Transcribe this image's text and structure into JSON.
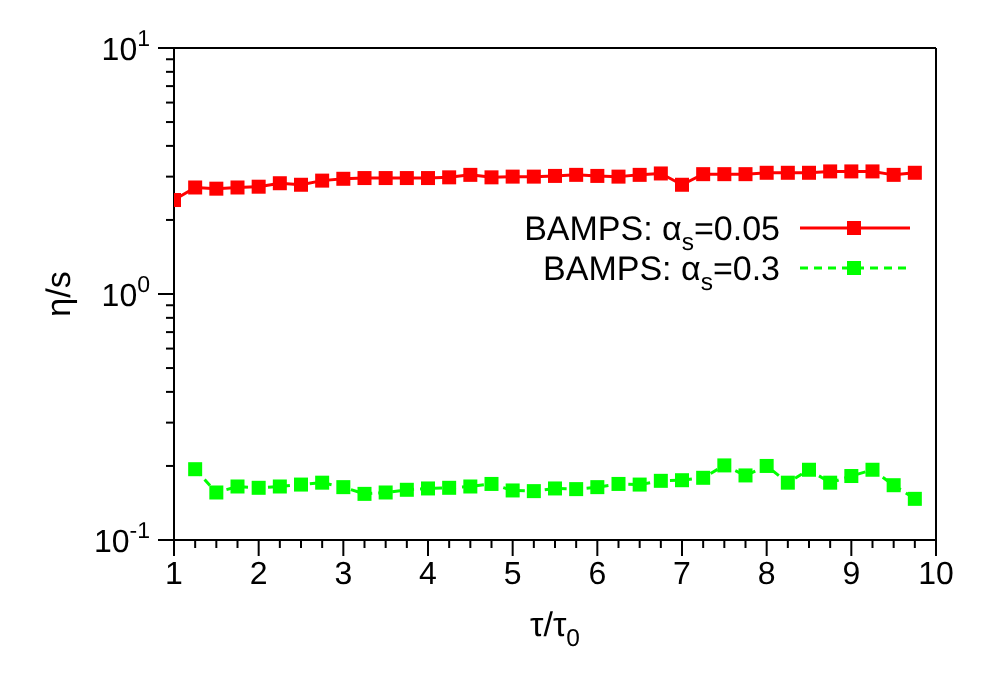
{
  "chart_data": {
    "type": "line",
    "xlabel": "τ/τ$_{0}$",
    "ylabel": "η/s",
    "log": "y",
    "xlim": [
      1,
      10
    ],
    "ylim": [
      0.1,
      10
    ],
    "xticks": [
      1,
      {
        "value": 1.25,
        "label": null
      },
      {
        "value": 1.5,
        "label": null
      },
      {
        "value": 1.75,
        "label": null
      },
      2,
      {
        "value": 2.25,
        "label": null
      },
      {
        "value": 2.5,
        "label": null
      },
      {
        "value": 2.75,
        "label": null
      },
      3,
      {
        "value": 3.25,
        "label": null
      },
      {
        "value": 3.5,
        "label": null
      },
      {
        "value": 3.75,
        "label": null
      },
      4,
      {
        "value": 4.25,
        "label": null
      },
      {
        "value": 4.5,
        "label": null
      },
      {
        "value": 4.75,
        "label": null
      },
      5,
      {
        "value": 5.25,
        "label": null
      },
      {
        "value": 5.5,
        "label": null
      },
      {
        "value": 5.75,
        "label": null
      },
      6,
      {
        "value": 6.25,
        "label": null
      },
      {
        "value": 6.5,
        "label": null
      },
      {
        "value": 6.75,
        "label": null
      },
      7,
      {
        "value": 7.25,
        "label": null
      },
      {
        "value": 7.5,
        "label": null
      },
      {
        "value": 7.75,
        "label": null
      },
      8,
      {
        "value": 8.25,
        "label": null
      },
      {
        "value": 8.5,
        "label": null
      },
      {
        "value": 8.75,
        "label": null
      },
      9,
      {
        "value": 9.25,
        "label": null
      },
      {
        "value": 9.5,
        "label": null
      },
      {
        "value": 9.75,
        "label": null
      },
      10
    ],
    "yticks": [
      {
        "value": 0.1,
        "label": "10$^{-1}$"
      },
      {
        "value": 0.2,
        "label": null
      },
      {
        "value": 0.3,
        "label": null
      },
      {
        "value": 0.4,
        "label": null
      },
      {
        "value": 0.5,
        "label": null
      },
      {
        "value": 0.6,
        "label": null
      },
      {
        "value": 0.7,
        "label": null
      },
      {
        "value": 0.8,
        "label": null
      },
      {
        "value": 0.9,
        "label": null
      },
      {
        "value": 1,
        "label": "10$^{0}$"
      },
      {
        "value": 2,
        "label": null
      },
      {
        "value": 3,
        "label": null
      },
      {
        "value": 4,
        "label": null
      },
      {
        "value": 5,
        "label": null
      },
      {
        "value": 6,
        "label": null
      },
      {
        "value": 7,
        "label": null
      },
      {
        "value": 8,
        "label": null
      },
      {
        "value": 9,
        "label": null
      },
      {
        "value": 10,
        "label": "10$^{1}$"
      }
    ],
    "legend": "top right",
    "marker": "square",
    "series": [
      {
        "name": "BAMPS: α$_{s}$=0.05",
        "color": "#ff0000",
        "line_style": "solid",
        "x": [
          1,
          1.25,
          1.5,
          1.75,
          2,
          2.25,
          2.5,
          2.75,
          3,
          3.25,
          3.5,
          3.75,
          4,
          4.25,
          4.5,
          4.75,
          5,
          5.25,
          5.5,
          5.75,
          6,
          6.25,
          6.5,
          6.75,
          7,
          7.25,
          7.5,
          7.75,
          8,
          8.25,
          8.5,
          8.75,
          9,
          9.25,
          9.5,
          9.75
        ],
        "values": [
          2.41,
          2.71,
          2.68,
          2.71,
          2.73,
          2.82,
          2.78,
          2.89,
          2.94,
          2.96,
          2.96,
          2.96,
          2.96,
          2.98,
          3.05,
          2.98,
          3.0,
          3.0,
          3.02,
          3.05,
          3.02,
          3.0,
          3.05,
          3.09,
          2.78,
          3.07,
          3.07,
          3.07,
          3.11,
          3.11,
          3.11,
          3.15,
          3.15,
          3.15,
          3.05,
          3.11
        ]
      },
      {
        "name": "BAMPS: α$_{s}$=0.3",
        "color": "#00ff00",
        "line_style": "dashed",
        "x": [
          1.25,
          1.5,
          1.75,
          2,
          2.25,
          2.5,
          2.75,
          3,
          3.25,
          3.5,
          3.75,
          4,
          4.25,
          4.5,
          4.75,
          5,
          5.25,
          5.5,
          5.75,
          6,
          6.25,
          6.5,
          6.75,
          7,
          7.25,
          7.5,
          7.75,
          8,
          8.25,
          8.5,
          8.75,
          9,
          9.25,
          9.5,
          9.75
        ],
        "values": [
          0.194,
          0.156,
          0.165,
          0.163,
          0.165,
          0.168,
          0.171,
          0.164,
          0.154,
          0.156,
          0.16,
          0.162,
          0.163,
          0.165,
          0.169,
          0.159,
          0.158,
          0.162,
          0.161,
          0.164,
          0.169,
          0.168,
          0.174,
          0.175,
          0.179,
          0.201,
          0.183,
          0.2,
          0.171,
          0.193,
          0.171,
          0.182,
          0.193,
          0.167,
          0.147
        ]
      }
    ]
  }
}
